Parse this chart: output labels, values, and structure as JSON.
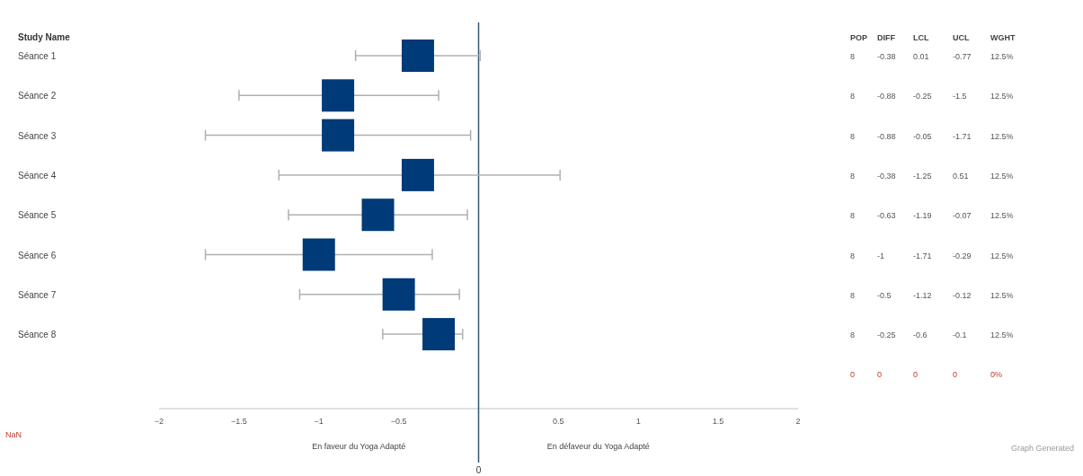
{
  "chart_data": [
    {
      "type": "scatter",
      "orientation": "horizontal",
      "ylabel": "Study Name",
      "categories": [
        "Séance 1",
        "Séance 2",
        "Séance 3",
        "Séance 4",
        "Séance 5",
        "Séance 6",
        "Séance 7",
        "Séance 8"
      ],
      "values": [
        -0.38,
        -0.88,
        -0.88,
        -0.38,
        -0.63,
        -1,
        -0.5,
        -0.25
      ],
      "errors": [
        [
          -0.77,
          0.01
        ],
        [
          -1.5,
          -0.25
        ],
        [
          -1.71,
          -0.05
        ],
        [
          -1.25,
          0.51
        ],
        [
          -1.19,
          -0.07
        ],
        [
          -1.71,
          -0.29
        ],
        [
          -1.12,
          -0.12
        ],
        [
          -0.6,
          -0.1
        ]
      ],
      "color": "#003a78",
      "marker": "square",
      "xlim": [
        -2,
        2
      ],
      "xticks": [
        -2,
        -1.5,
        -1,
        -0.5,
        0.5,
        1,
        1.5,
        2
      ],
      "ref_lines": [
        {
          "axis": "x",
          "value": 0,
          "label": "0",
          "color": "#2f5a7a"
        }
      ],
      "annotations": [
        "En faveur du Yoga Adapté",
        "En défaveur du Yoga Adapté",
        "NaN",
        "Graph Generated"
      ]
    },
    {
      "type": "other",
      "categories": [
        "POP",
        "DIFF",
        "LCL",
        "UCL",
        "WGHT"
      ],
      "cell_labels": [
        [
          "8",
          "-0.38",
          "0.01",
          "-0.77",
          "12.5%"
        ],
        [
          "8",
          "-0.88",
          "-0.25",
          "-1.5",
          "12.5%"
        ],
        [
          "8",
          "-0.88",
          "-0.05",
          "-1.71",
          "12.5%"
        ],
        [
          "8",
          "-0.38",
          "-1.25",
          "0.51",
          "12.5%"
        ],
        [
          "8",
          "-0.63",
          "-1.19",
          "-0.07",
          "12.5%"
        ],
        [
          "8",
          "-1",
          "-1.71",
          "-0.29",
          "12.5%"
        ],
        [
          "8",
          "-0.5",
          "-1.12",
          "-0.12",
          "12.5%"
        ],
        [
          "8",
          "-0.25",
          "-0.6",
          "-0.1",
          "12.5%"
        ],
        [
          "0",
          "0",
          "0",
          "0",
          "0%"
        ]
      ],
      "colors": [
        "#555555",
        "#555555",
        "#555555",
        "#555555",
        "#555555",
        "#555555",
        "#555555",
        "#555555",
        "#c0392b"
      ]
    }
  ]
}
